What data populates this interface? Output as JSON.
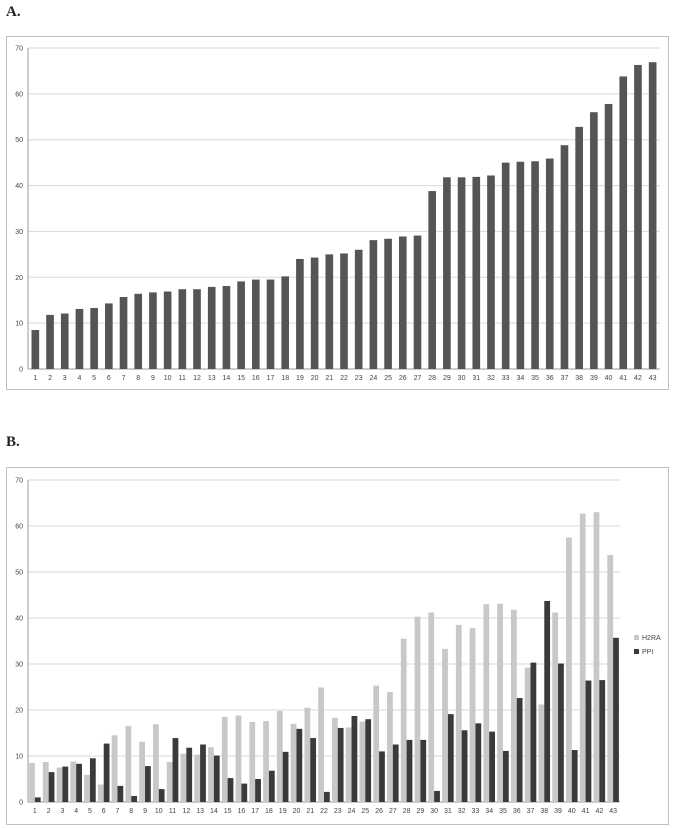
{
  "panels": {
    "a_label": "A.",
    "b_label": "B."
  },
  "chart_data": [
    {
      "type": "bar",
      "categories": [
        "1",
        "2",
        "3",
        "4",
        "5",
        "6",
        "7",
        "8",
        "9",
        "10",
        "11",
        "12",
        "13",
        "14",
        "15",
        "16",
        "17",
        "18",
        "19",
        "20",
        "21",
        "22",
        "23",
        "24",
        "25",
        "26",
        "27",
        "28",
        "29",
        "30",
        "31",
        "32",
        "33",
        "34",
        "35",
        "36",
        "37",
        "38",
        "39",
        "40",
        "41",
        "42",
        "43"
      ],
      "values": [
        8.5,
        11.8,
        12.1,
        13.1,
        13.3,
        14.3,
        15.7,
        16.4,
        16.7,
        16.9,
        17.4,
        17.4,
        17.9,
        18.1,
        19.1,
        19.5,
        19.5,
        20.2,
        24,
        24.3,
        25,
        25.2,
        26,
        28.1,
        28.4,
        28.9,
        29.1,
        38.8,
        41.8,
        41.8,
        41.9,
        42.2,
        45,
        45.2,
        45.3,
        45.9,
        48.8,
        52.8,
        56,
        57.8,
        63.8,
        66.3,
        66.9
      ],
      "ylim": [
        0,
        70
      ],
      "yticks": [
        0,
        10,
        20,
        30,
        40,
        50,
        60,
        70
      ],
      "grid": true,
      "colors": {
        "bar": "#555555",
        "grid": "#d9d9d9"
      }
    },
    {
      "type": "bar",
      "categories": [
        "1",
        "2",
        "3",
        "4",
        "5",
        "6",
        "7",
        "8",
        "9",
        "10",
        "11",
        "12",
        "13",
        "14",
        "15",
        "16",
        "17",
        "18",
        "19",
        "20",
        "21",
        "22",
        "23",
        "24",
        "25",
        "26",
        "27",
        "28",
        "29",
        "30",
        "31",
        "32",
        "33",
        "34",
        "35",
        "36",
        "37",
        "38",
        "39",
        "40",
        "41",
        "42",
        "43"
      ],
      "series": [
        {
          "name": "H2RA",
          "color": "#c8c8c8",
          "values": [
            8.5,
            8.7,
            7.5,
            8.8,
            5.9,
            3.8,
            14.5,
            16.5,
            13.1,
            16.9,
            8.7,
            10.5,
            10.3,
            11.9,
            18.5,
            18.8,
            17.4,
            17.6,
            19.8,
            17,
            20.5,
            24.9,
            18.3,
            16.2,
            17.5,
            25.3,
            23.9,
            35.5,
            40.3,
            41.2,
            33.3,
            38.5,
            37.8,
            43,
            43.1,
            41.8,
            29.2,
            21.2,
            41.2,
            57.5,
            62.7,
            63,
            53.7
          ]
        },
        {
          "name": "PPI",
          "color": "#3a3a3a",
          "values": [
            1,
            6.5,
            7.7,
            8.3,
            9.5,
            12.7,
            3.5,
            1.3,
            7.8,
            2.8,
            13.9,
            11.8,
            12.5,
            10.1,
            5.2,
            4,
            5,
            6.8,
            10.9,
            15.9,
            13.9,
            2.2,
            16.1,
            18.7,
            18,
            11,
            12.5,
            13.5,
            13.5,
            2.4,
            19.1,
            15.6,
            17.1,
            15.3,
            11.1,
            22.6,
            30.3,
            43.7,
            30.1,
            11.3,
            26.4,
            26.5,
            35.7
          ]
        }
      ],
      "ylim": [
        0,
        70
      ],
      "yticks": [
        0,
        10,
        20,
        30,
        40,
        50,
        60,
        70
      ],
      "grid": true,
      "legend": "right",
      "colors": {
        "grid": "#d9d9d9"
      }
    }
  ]
}
